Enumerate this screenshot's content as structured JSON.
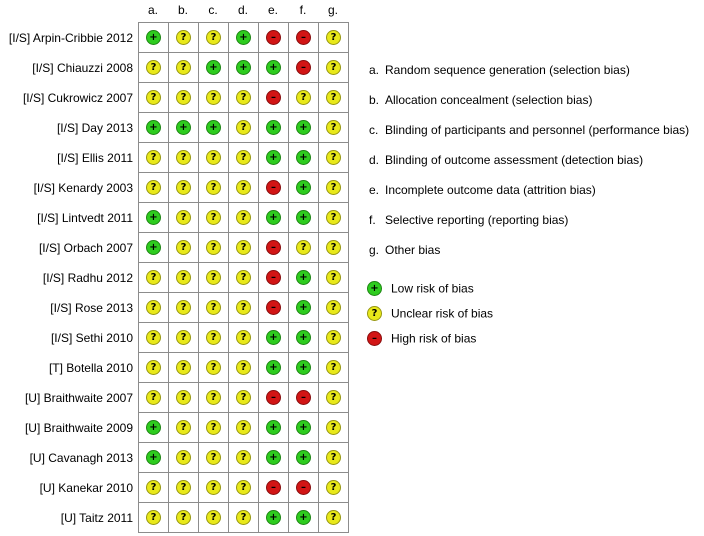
{
  "columns": [
    "a.",
    "b.",
    "c.",
    "d.",
    "e.",
    "f.",
    "g."
  ],
  "studies": [
    {
      "label": "[I/S] Arpin-Cribbie 2012",
      "ratings": [
        "low",
        "unclear",
        "unclear",
        "low",
        "high",
        "high",
        "unclear"
      ]
    },
    {
      "label": "[I/S] Chiauzzi 2008",
      "ratings": [
        "unclear",
        "unclear",
        "low",
        "low",
        "low",
        "high",
        "unclear"
      ]
    },
    {
      "label": "[I/S] Cukrowicz 2007",
      "ratings": [
        "unclear",
        "unclear",
        "unclear",
        "unclear",
        "high",
        "unclear",
        "unclear"
      ]
    },
    {
      "label": "[I/S] Day 2013",
      "ratings": [
        "low",
        "low",
        "low",
        "unclear",
        "low",
        "low",
        "unclear"
      ]
    },
    {
      "label": "[I/S] Ellis 2011",
      "ratings": [
        "unclear",
        "unclear",
        "unclear",
        "unclear",
        "low",
        "low",
        "unclear"
      ]
    },
    {
      "label": "[I/S] Kenardy 2003",
      "ratings": [
        "unclear",
        "unclear",
        "unclear",
        "unclear",
        "high",
        "low",
        "unclear"
      ]
    },
    {
      "label": "[I/S] Lintvedt 2011",
      "ratings": [
        "low",
        "unclear",
        "unclear",
        "unclear",
        "low",
        "low",
        "unclear"
      ]
    },
    {
      "label": "[I/S] Orbach 2007",
      "ratings": [
        "low",
        "unclear",
        "unclear",
        "unclear",
        "high",
        "unclear",
        "unclear"
      ]
    },
    {
      "label": "[I/S] Radhu 2012",
      "ratings": [
        "unclear",
        "unclear",
        "unclear",
        "unclear",
        "high",
        "low",
        "unclear"
      ]
    },
    {
      "label": "[I/S] Rose 2013",
      "ratings": [
        "unclear",
        "unclear",
        "unclear",
        "unclear",
        "high",
        "low",
        "unclear"
      ]
    },
    {
      "label": "[I/S] Sethi 2010",
      "ratings": [
        "unclear",
        "unclear",
        "unclear",
        "unclear",
        "low",
        "low",
        "unclear"
      ]
    },
    {
      "label": "[T] Botella 2010",
      "ratings": [
        "unclear",
        "unclear",
        "unclear",
        "unclear",
        "low",
        "low",
        "unclear"
      ]
    },
    {
      "label": "[U] Braithwaite 2007",
      "ratings": [
        "unclear",
        "unclear",
        "unclear",
        "unclear",
        "high",
        "high",
        "unclear"
      ]
    },
    {
      "label": "[U] Braithwaite 2009",
      "ratings": [
        "low",
        "unclear",
        "unclear",
        "unclear",
        "low",
        "low",
        "unclear"
      ]
    },
    {
      "label": "[U] Cavanagh 2013",
      "ratings": [
        "low",
        "unclear",
        "unclear",
        "unclear",
        "low",
        "low",
        "unclear"
      ]
    },
    {
      "label": "[U] Kanekar 2010",
      "ratings": [
        "unclear",
        "unclear",
        "unclear",
        "unclear",
        "high",
        "high",
        "unclear"
      ]
    },
    {
      "label": "[U] Taitz 2011",
      "ratings": [
        "unclear",
        "unclear",
        "unclear",
        "unclear",
        "low",
        "low",
        "unclear"
      ]
    }
  ],
  "domains": [
    {
      "letter": "a.",
      "text": "Random sequence generation (selection bias)"
    },
    {
      "letter": "b.",
      "text": "Allocation concealment (selection bias)"
    },
    {
      "letter": "c.",
      "text": "Blinding of participants and personnel (performance bias)"
    },
    {
      "letter": "d.",
      "text": "Blinding of outcome assessment (detection bias)"
    },
    {
      "letter": "e.",
      "text": "Incomplete outcome data (attrition bias)"
    },
    {
      "letter": "f.",
      "text": "Selective reporting (reporting bias)"
    },
    {
      "letter": "g.",
      "text": "Other bias"
    }
  ],
  "symbols": {
    "low": "+",
    "unclear": "?",
    "high": "–"
  },
  "legend": [
    {
      "rating": "low",
      "text": "Low risk of bias"
    },
    {
      "rating": "unclear",
      "text": "Unclear risk of bias"
    },
    {
      "rating": "high",
      "text": "High risk of bias"
    }
  ],
  "colors": {
    "low": "#2ecc1f",
    "unclear": "#e8e81a",
    "high": "#d21515",
    "grid": "#8c8c8c"
  }
}
